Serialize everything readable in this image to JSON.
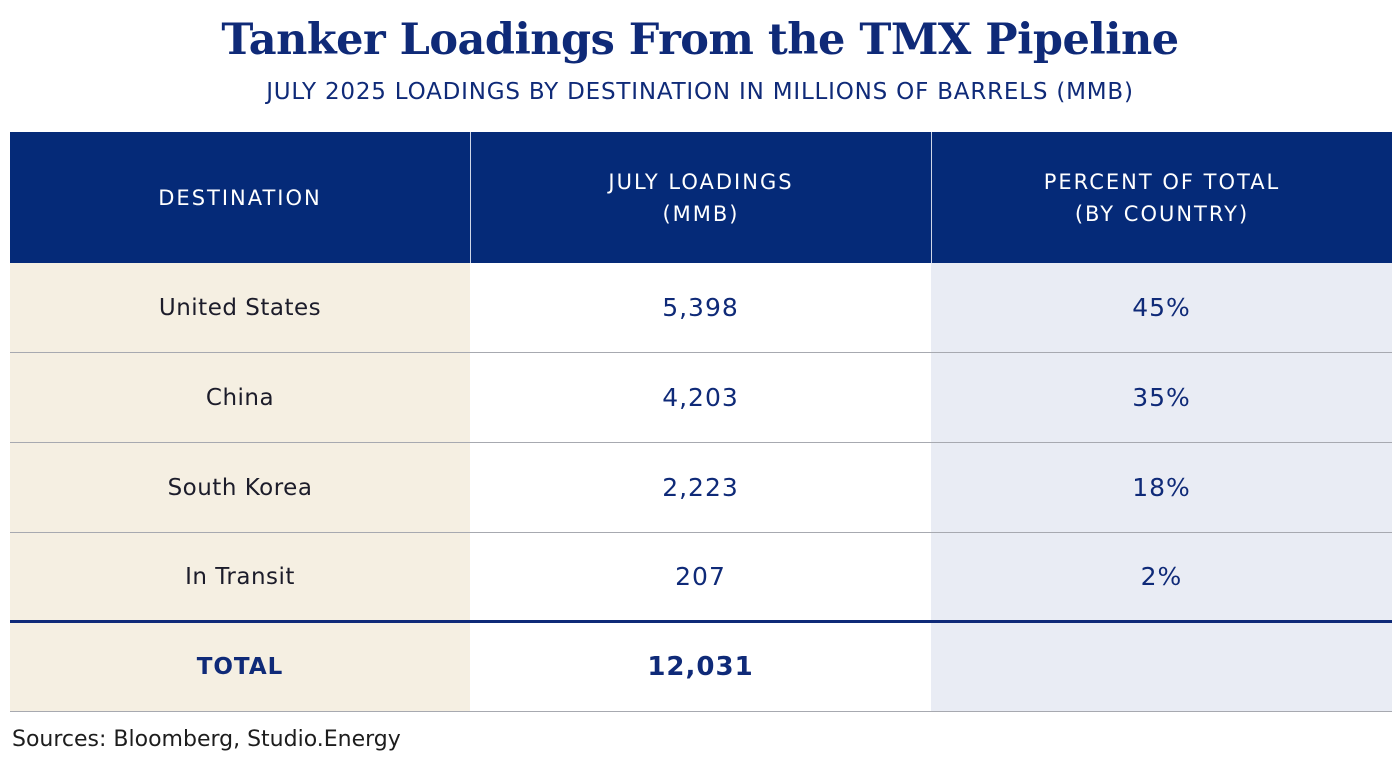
{
  "title": "Tanker Loadings From the TMX Pipeline",
  "subtitle": "JULY 2025 LOADINGS BY DESTINATION IN MILLIONS OF BARRELS (MMB)",
  "headers": {
    "destination": "DESTINATION",
    "loadings": "JULY LOADINGS\n(MMB)",
    "percent": "PERCENT OF TOTAL\n(BY COUNTRY)"
  },
  "rows": [
    {
      "destination": "United States",
      "loadings": "5,398",
      "percent": "45%"
    },
    {
      "destination": "China",
      "loadings": "4,203",
      "percent": "35%"
    },
    {
      "destination": "South Korea",
      "loadings": "2,223",
      "percent": "18%"
    },
    {
      "destination": "In Transit",
      "loadings": "207",
      "percent": "2%"
    }
  ],
  "total": {
    "label": "TOTAL",
    "loadings": "12,031",
    "percent": ""
  },
  "source": "Sources: Bloomberg, Studio.Energy",
  "colors": {
    "header_bg": "#052a78",
    "accent_text": "#0f2a78",
    "destination_col_bg": "#f5efe2",
    "percent_col_bg": "#e9ecf4"
  },
  "chart_data": {
    "type": "table",
    "title": "Tanker Loadings From the TMX Pipeline",
    "subtitle": "JULY 2025 LOADINGS BY DESTINATION IN MILLIONS OF BARRELS (MMB)",
    "columns": [
      "DESTINATION",
      "JULY LOADINGS (MMB)",
      "PERCENT OF TOTAL (BY COUNTRY)"
    ],
    "categories": [
      "United States",
      "China",
      "South Korea",
      "In Transit"
    ],
    "series": [
      {
        "name": "JULY LOADINGS (MMB)",
        "values": [
          5398,
          4203,
          2223,
          207
        ]
      },
      {
        "name": "PERCENT OF TOTAL (BY COUNTRY)",
        "values": [
          45,
          35,
          18,
          2
        ]
      }
    ],
    "total": 12031
  }
}
